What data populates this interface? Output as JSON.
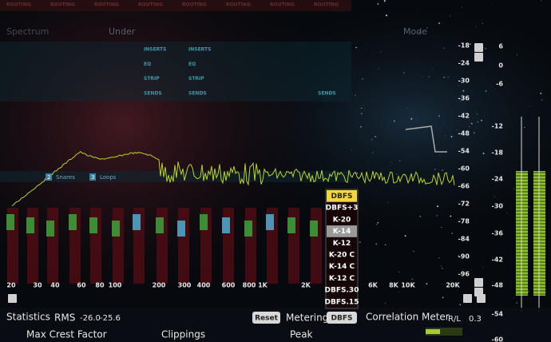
{
  "header": {
    "tabs": [
      "ROUTING",
      "ROUTING",
      "ROUTING",
      "ROUTING",
      "ROUTING",
      "ROUTING",
      "ROUTING",
      "ROUTING"
    ],
    "spectrum": "Spectrum",
    "under": "Under",
    "mode": "Mode"
  },
  "routing_rows": [
    [
      "INSERTS",
      "INSERTS"
    ],
    [
      "EQ",
      "EQ"
    ],
    [
      "STRIP",
      "STRIP"
    ],
    [
      "SENDS",
      "SENDS",
      "SENDS"
    ]
  ],
  "tracks": [
    {
      "number": "2",
      "name": "Snares"
    },
    {
      "number": "3",
      "name": "Loops"
    }
  ],
  "frequency_labels": [
    "20",
    "30",
    "40",
    "60",
    "80",
    "100",
    "200",
    "300",
    "400",
    "600",
    "800",
    "1K",
    "2K",
    "6K",
    "8K",
    "10K",
    "20K"
  ],
  "spectrum_scale": [
    "-18",
    "-24",
    "-30",
    "-36",
    "-42",
    "-48",
    "-54",
    "-60",
    "-66",
    "-72",
    "-78",
    "-84",
    "-90",
    "-96"
  ],
  "meter_scale": [
    "6",
    "0",
    "-6",
    "-12",
    "-18",
    "-24",
    "-30",
    "-36",
    "-42",
    "-48",
    "-54",
    "-60"
  ],
  "metering_menu": {
    "options": [
      "DBFS",
      "DBFS+3",
      "K-20",
      "K-14",
      "K-12",
      "K-20 C",
      "K-14 C",
      "K-12 C",
      "DBFS.30",
      "DBFS.15"
    ]
  },
  "statistics": {
    "title": "Statistics",
    "rms_label": "RMS",
    "rms_left": "-26.0",
    "rms_right": "-25.6",
    "reset": "Reset",
    "metering_label": "Metering",
    "metering_value": "DBFS",
    "correlation_label": "Correlation Meter",
    "rl_label": "R/L",
    "rl_value": "0.3",
    "max_crest": "Max Crest Factor",
    "clippings": "Clippings",
    "peak": "Peak"
  }
}
